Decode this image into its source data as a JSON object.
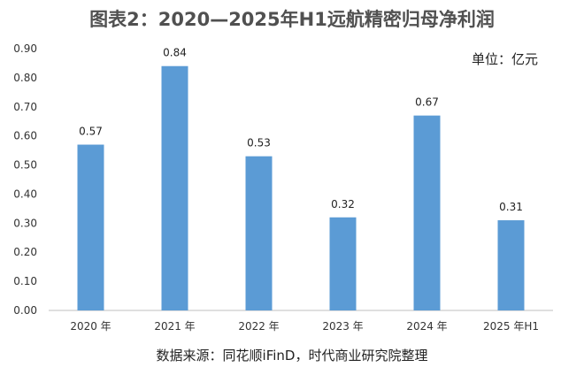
{
  "chart_data": {
    "type": "bar",
    "title": "图表2：2020—2025年H1远航精密归母净利润",
    "unit_label": "单位：亿元",
    "source": "数据来源：同花顺iFinD，时代商业研究院整理",
    "categories": [
      "2020 年",
      "2021 年",
      "2022 年",
      "2023 年",
      "2024 年",
      "2025 年H1"
    ],
    "values": [
      0.57,
      0.84,
      0.53,
      0.32,
      0.67,
      0.31
    ],
    "data_labels": [
      "0.57",
      "0.84",
      "0.53",
      "0.32",
      "0.67",
      "0.31"
    ],
    "ylim": [
      0,
      0.9
    ],
    "yticks": [
      "0.00",
      "0.10",
      "0.20",
      "0.30",
      "0.40",
      "0.50",
      "0.60",
      "0.70",
      "0.80",
      "0.90"
    ],
    "bar_color": "#5B9BD5",
    "grid": false,
    "legend": "none"
  }
}
